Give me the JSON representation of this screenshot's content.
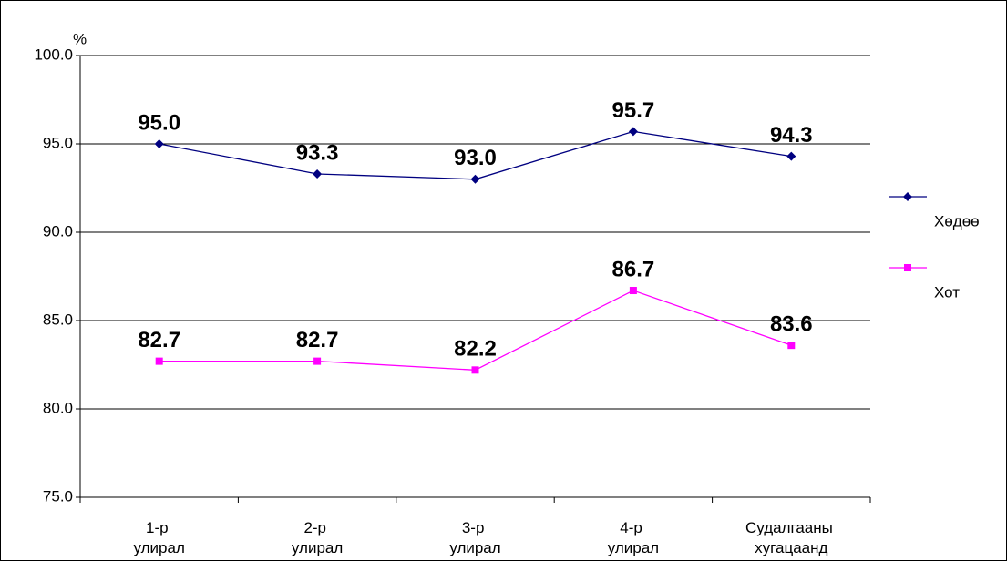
{
  "chart_data": {
    "type": "line",
    "y_label": "%",
    "categories": [
      "1-р улирал",
      "2-р улирал",
      "3-р улирал",
      "4-р улирал",
      "Судалгааны хугацаанд"
    ],
    "series": [
      {
        "name": "Хөдөө",
        "color": "#000080",
        "marker": "diamond",
        "values": [
          95.0,
          93.3,
          93.0,
          95.7,
          94.3
        ],
        "value_labels": [
          "95.0",
          "93.3",
          "93.0",
          "95.7",
          "94.3"
        ]
      },
      {
        "name": "Хот",
        "color": "#ff00ff",
        "marker": "square",
        "values": [
          82.7,
          82.7,
          82.2,
          86.7,
          83.6
        ],
        "value_labels": [
          "82.7",
          "82.7",
          "82.2",
          "86.7",
          "83.6"
        ]
      }
    ],
    "ylim": [
      75,
      100
    ],
    "yticks": [
      {
        "value": 75,
        "label": "75.0"
      },
      {
        "value": 80,
        "label": "80.0"
      },
      {
        "value": 85,
        "label": "85.0"
      },
      {
        "value": 90,
        "label": "90.0"
      },
      {
        "value": 95,
        "label": "95.0"
      },
      {
        "value": 100,
        "label": "100.0"
      }
    ],
    "grid": true,
    "legend": "right"
  }
}
